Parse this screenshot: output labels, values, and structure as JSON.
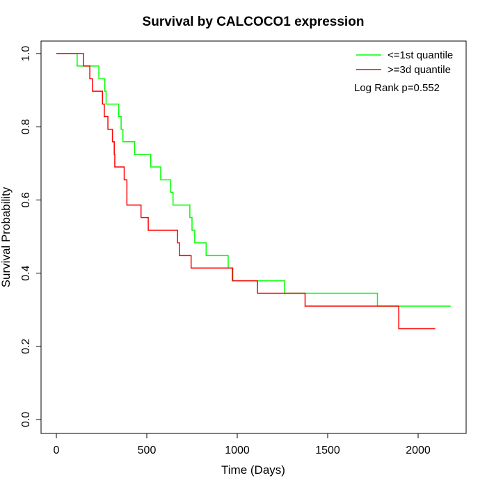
{
  "chart_data": {
    "type": "line",
    "title": "Survival by CALCOCO1 expression",
    "xlabel": "Time (Days)",
    "ylabel": "Survival Probability",
    "xlim": [
      0,
      2180
    ],
    "ylim": [
      0,
      1.0
    ],
    "x_ticks": [
      0,
      500,
      1000,
      1500,
      2000
    ],
    "y_ticks": [
      0.0,
      0.2,
      0.4,
      0.6,
      0.8,
      1.0
    ],
    "x_tick_labels": [
      "0",
      "500",
      "1000",
      "1500",
      "2000"
    ],
    "y_tick_labels": [
      "0.0",
      "0.2",
      "0.4",
      "0.6",
      "0.8",
      "1.0"
    ],
    "grid": false,
    "legend_position": "top-right",
    "annotation": "Log Rank p=0.552",
    "series": [
      {
        "name": "<=1st quantile",
        "color": "#00ff00",
        "step": "post",
        "x": [
          0,
          115,
          235,
          268,
          275,
          345,
          358,
          368,
          433,
          522,
          577,
          632,
          645,
          650,
          738,
          750,
          765,
          828,
          950,
          972,
          1262,
          1775,
          2180
        ],
        "y": [
          1.0,
          0.966,
          0.931,
          0.897,
          0.862,
          0.828,
          0.793,
          0.759,
          0.724,
          0.69,
          0.655,
          0.621,
          0.586,
          0.586,
          0.552,
          0.517,
          0.483,
          0.448,
          0.414,
          0.379,
          0.345,
          0.31,
          0.31
        ]
      },
      {
        "name": ">=3d quantile",
        "color": "#ff0000",
        "step": "post",
        "x": [
          0,
          150,
          185,
          200,
          255,
          265,
          285,
          310,
          320,
          323,
          375,
          390,
          468,
          508,
          670,
          680,
          745,
          975,
          1112,
          1375,
          1893,
          2095
        ],
        "y": [
          1.0,
          0.966,
          0.931,
          0.897,
          0.862,
          0.828,
          0.793,
          0.759,
          0.724,
          0.69,
          0.655,
          0.586,
          0.552,
          0.517,
          0.483,
          0.448,
          0.414,
          0.379,
          0.345,
          0.31,
          0.248,
          0.248
        ]
      }
    ]
  }
}
